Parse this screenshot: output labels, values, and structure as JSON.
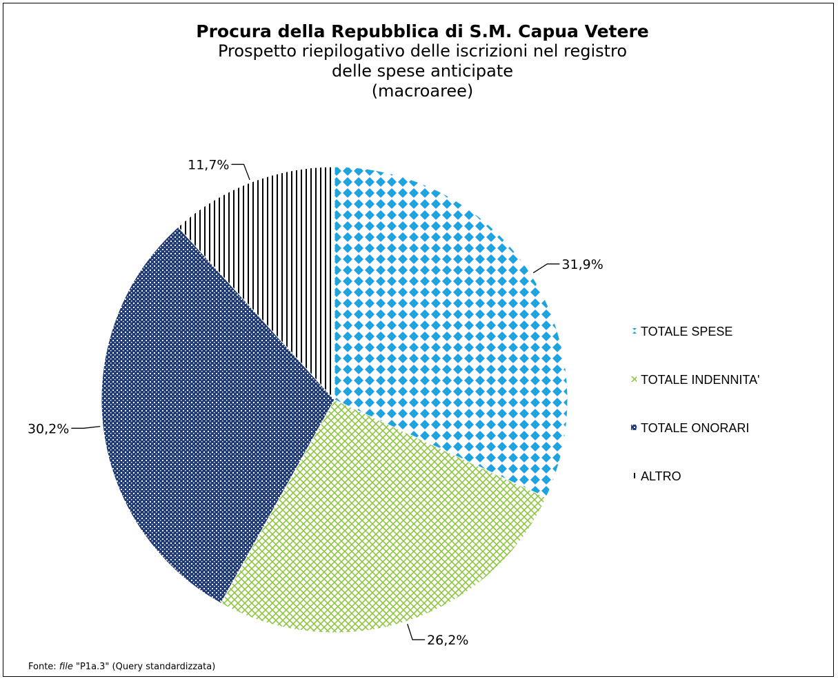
{
  "chart_data": {
    "type": "pie",
    "title": "Procura della Repubblica di S.M. Capua Vetere",
    "subtitle_lines": [
      "Prospetto riepilogativo delle iscrizioni nel registro",
      "delle spese anticipate",
      "(macroaree)"
    ],
    "slices": [
      {
        "name": "TOTALE SPESE",
        "value": 31.9,
        "label": "31,9%",
        "color": "#1fa3dd",
        "pattern": "diamond"
      },
      {
        "name": "TOTALE INDENNITA'",
        "value": 26.2,
        "label": "26,2%",
        "color": "#8cc63f",
        "pattern": "lattice"
      },
      {
        "name": "TOTALE ONORARI",
        "value": 30.2,
        "label": "30,2%",
        "color": "#1f3b7a",
        "pattern": "check"
      },
      {
        "name": "ALTRO",
        "value": 11.7,
        "label": "11,7%",
        "color": "#000000",
        "pattern": "vertical"
      }
    ],
    "start_angle": "12 o'clock",
    "direction": "clockwise",
    "legend_position": "right"
  },
  "footer": {
    "prefix": "Fonte: ",
    "file_word": "file",
    "rest": " \"P1a.3\" (Query standardizzata)"
  }
}
